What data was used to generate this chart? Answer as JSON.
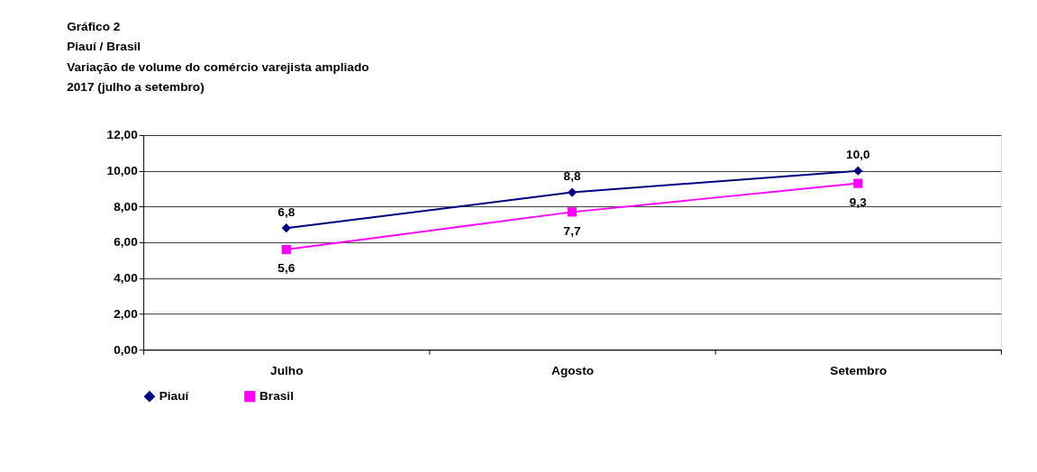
{
  "chart_data": {
    "type": "line",
    "title": "Gráfico 2\nPiauí / Brasil\nVariação de volume do comércio varejista ampliado\n2017 (julho a setembro)",
    "categories": [
      "Julho",
      "Agosto",
      "Setembro"
    ],
    "series": [
      {
        "name": "Piauí",
        "color": "#000080",
        "marker": "diamond",
        "values": [
          6.8,
          8.8,
          10.0
        ],
        "value_labels": [
          "6,8",
          "8,8",
          "10,0"
        ]
      },
      {
        "name": "Brasil",
        "color": "#ff00ff",
        "marker": "square",
        "values": [
          5.6,
          7.7,
          9.3
        ],
        "value_labels": [
          "5,6",
          "7,7",
          "9,3"
        ]
      }
    ],
    "ylim": [
      0,
      12
    ],
    "yticks": [
      {
        "value": 0,
        "label": "0,00"
      },
      {
        "value": 2,
        "label": "2,00"
      },
      {
        "value": 4,
        "label": "4,00"
      },
      {
        "value": 6,
        "label": "6,00"
      },
      {
        "value": 8,
        "label": "8,00"
      },
      {
        "value": 10,
        "label": "10,00"
      },
      {
        "value": 12,
        "label": "12,00"
      }
    ],
    "grid": "y",
    "legend": "bottom",
    "line_style": "solid"
  }
}
